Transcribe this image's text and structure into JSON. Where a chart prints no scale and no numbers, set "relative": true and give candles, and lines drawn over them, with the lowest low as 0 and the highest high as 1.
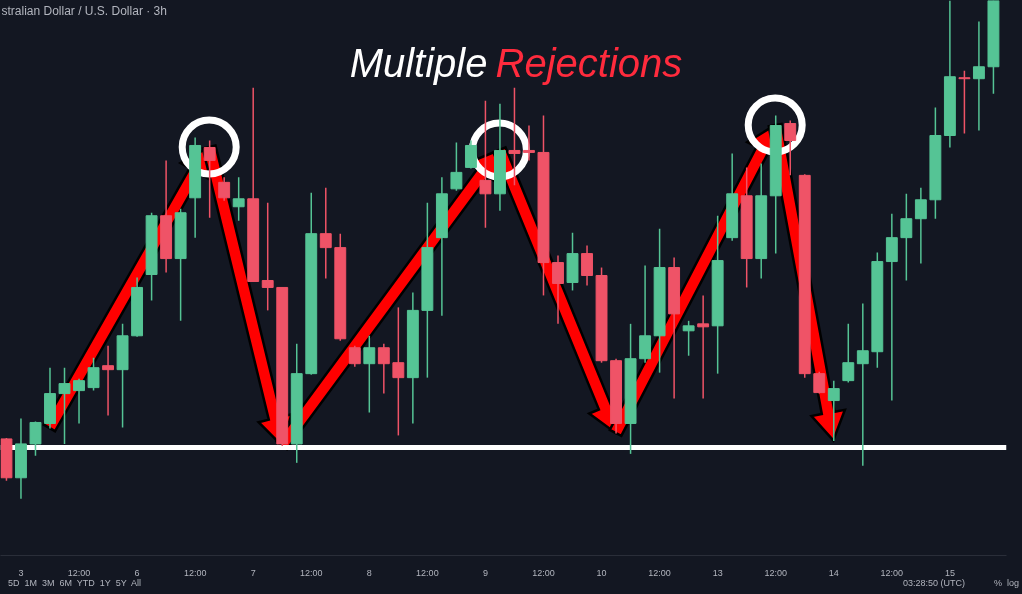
{
  "chart_data": {
    "type": "candlestick",
    "title": "Multiple Rejections",
    "subtitle": "stralian Dollar / U.S. Dollar · 3h",
    "relative": true,
    "categories": [
      null,
      "3",
      null,
      null,
      null,
      "12:00",
      null,
      null,
      null,
      "6",
      null,
      null,
      null,
      "12:00",
      null,
      null,
      null,
      "7",
      null,
      null,
      null,
      "12:00",
      null,
      null,
      null,
      "8",
      null,
      null,
      null,
      "12:00",
      null,
      null,
      null,
      "9",
      null,
      null,
      null,
      "12:00",
      null,
      null,
      null,
      "10",
      null,
      null,
      null,
      "12:00",
      null,
      null,
      null,
      "13",
      null,
      null,
      null,
      "12:00",
      null,
      null,
      null,
      "14",
      null,
      null,
      null,
      "12:00",
      null,
      null,
      null,
      "15",
      null,
      null,
      null
    ],
    "ohlc": [
      [
        0.12,
        0.122,
        0.036,
        0.042
      ],
      [
        0.042,
        0.161,
        0,
        0.11
      ],
      [
        0.11,
        0.155,
        0.086,
        0.153
      ],
      [
        0.151,
        0.263,
        0.141,
        0.211
      ],
      [
        0.211,
        0.263,
        0.11,
        0.231
      ],
      [
        0.217,
        0.241,
        0.151,
        0.237
      ],
      [
        0.223,
        0.283,
        0.217,
        0.263
      ],
      [
        0.267,
        0.307,
        0.167,
        0.259
      ],
      [
        0.259,
        0.351,
        0.143,
        0.327
      ],
      [
        0.327,
        0.444,
        0.325,
        0.424
      ],
      [
        0.45,
        0.574,
        0.398,
        0.568
      ],
      [
        0.568,
        0.679,
        0.454,
        0.482
      ],
      [
        0.482,
        0.582,
        0.357,
        0.574
      ],
      [
        0.604,
        0.725,
        0.524,
        0.709
      ],
      [
        0.705,
        0.719,
        0.564,
        0.679
      ],
      [
        0.635,
        0.645,
        0.598,
        0.604
      ],
      [
        0.586,
        0.645,
        0.558,
        0.602
      ],
      [
        0.602,
        0.825,
        0.436,
        0.436
      ],
      [
        0.438,
        0.594,
        0.378,
        0.424
      ],
      [
        0.424,
        0.424,
        0.106,
        0.11
      ],
      [
        0.11,
        0.311,
        0.072,
        0.251
      ],
      [
        0.251,
        0.614,
        0.249,
        0.532
      ],
      [
        0.532,
        0.624,
        0.442,
        0.504
      ],
      [
        0.504,
        0.532,
        0.317,
        0.321
      ],
      [
        0.303,
        0.307,
        0.265,
        0.271
      ],
      [
        0.271,
        0.327,
        0.173,
        0.303
      ],
      [
        0.303,
        0.311,
        0.211,
        0.271
      ],
      [
        0.273,
        0.384,
        0.127,
        0.243
      ],
      [
        0.243,
        0.414,
        0.151,
        0.378
      ],
      [
        0.378,
        0.594,
        0.243,
        0.504
      ],
      [
        0.524,
        0.645,
        0.367,
        0.612
      ],
      [
        0.622,
        0.715,
        0.618,
        0.655
      ],
      [
        0.665,
        0.719,
        0.663,
        0.709
      ],
      [
        0.639,
        0.799,
        0.544,
        0.612
      ],
      [
        0.612,
        0.793,
        0.578,
        0.699
      ],
      [
        0.699,
        0.825,
        0.629,
        0.693
      ],
      [
        0.699,
        0.749,
        0.679,
        0.695
      ],
      [
        0.695,
        0.769,
        0.408,
        0.474
      ],
      [
        0.474,
        0.488,
        0.351,
        0.432
      ],
      [
        0.434,
        0.534,
        0.418,
        0.492
      ],
      [
        0.492,
        0.508,
        0.428,
        0.448
      ],
      [
        0.448,
        0.464,
        0.273,
        0.277
      ],
      [
        0.277,
        0.281,
        0.131,
        0.151
      ],
      [
        0.151,
        0.351,
        0.09,
        0.281
      ],
      [
        0.281,
        0.468,
        0.273,
        0.327
      ],
      [
        0.327,
        0.542,
        0.253,
        0.464
      ],
      [
        0.464,
        0.484,
        0.201,
        0.371
      ],
      [
        0.337,
        0.357,
        0.287,
        0.347
      ],
      [
        0.351,
        0.408,
        0.201,
        0.345
      ],
      [
        0.347,
        0.568,
        0.251,
        0.478
      ],
      [
        0.524,
        0.693,
        0.518,
        0.612
      ],
      [
        0.608,
        0.665,
        0.424,
        0.482
      ],
      [
        0.482,
        0.673,
        0.442,
        0.608
      ],
      [
        0.608,
        0.769,
        0.492,
        0.749
      ],
      [
        0.753,
        0.759,
        0.649,
        0.719
      ],
      [
        0.649,
        0.651,
        0.243,
        0.251
      ],
      [
        0.251,
        0.255,
        0.211,
        0.213
      ],
      [
        0.197,
        0.237,
        0.116,
        0.221
      ],
      [
        0.237,
        0.351,
        0.233,
        0.273
      ],
      [
        0.271,
        0.392,
        0.066,
        0.297
      ],
      [
        0.295,
        0.494,
        0.263,
        0.476
      ],
      [
        0.476,
        0.572,
        0.197,
        0.524
      ],
      [
        0.524,
        0.612,
        0.438,
        0.562
      ],
      [
        0.562,
        0.624,
        0.472,
        0.6
      ],
      [
        0.6,
        0.785,
        0.562,
        0.729
      ],
      [
        0.729,
        1,
        0.705,
        0.847
      ],
      [
        0.845,
        0.859,
        0.733,
        0.843
      ],
      [
        0.843,
        0.958,
        0.739,
        0.867
      ],
      [
        0.867,
        1,
        0.813,
        1
      ]
    ],
    "colors": [
      "#ef5367",
      "#55c495",
      "#55c495",
      "#55c495",
      "#55c495",
      "#55c495",
      "#55c495",
      "#ef5367",
      "#55c495",
      "#55c495",
      "#55c495",
      "#ef5367",
      "#55c495",
      "#55c495",
      "#ef5367",
      "#ef5367",
      "#55c495",
      "#ef5367",
      "#ef5367",
      "#ef5367",
      "#55c495",
      "#55c495",
      "#ef5367",
      "#ef5367",
      "#ef5367",
      "#55c495",
      "#ef5367",
      "#ef5367",
      "#55c495",
      "#55c495",
      "#55c495",
      "#55c495",
      "#55c495",
      "#ef5367",
      "#55c495",
      "#ef5367",
      "#ef5367",
      "#ef5367",
      "#ef5367",
      "#55c495",
      "#ef5367",
      "#ef5367",
      "#ef5367",
      "#55c495",
      "#55c495",
      "#55c495",
      "#ef5367",
      "#55c495",
      "#ef5367",
      "#55c495",
      "#55c495",
      "#ef5367",
      "#55c495",
      "#55c495",
      "#ef5367",
      "#ef5367",
      "#ef5367",
      "#55c495",
      "#55c495",
      "#55c495",
      "#55c495",
      "#55c495",
      "#55c495",
      "#55c495",
      "#55c495",
      "#55c495",
      "#ef5367",
      "#55c495",
      "#55c495"
    ],
    "ref_lines": [
      {
        "axis": "y",
        "value": 0.103,
        "color": "#ffffff"
      }
    ],
    "annotations": [
      "5D  1M  3M  6M  YTD  1Y  5Y  All",
      "03:28:50 (UTC)",
      "%  log"
    ]
  }
}
